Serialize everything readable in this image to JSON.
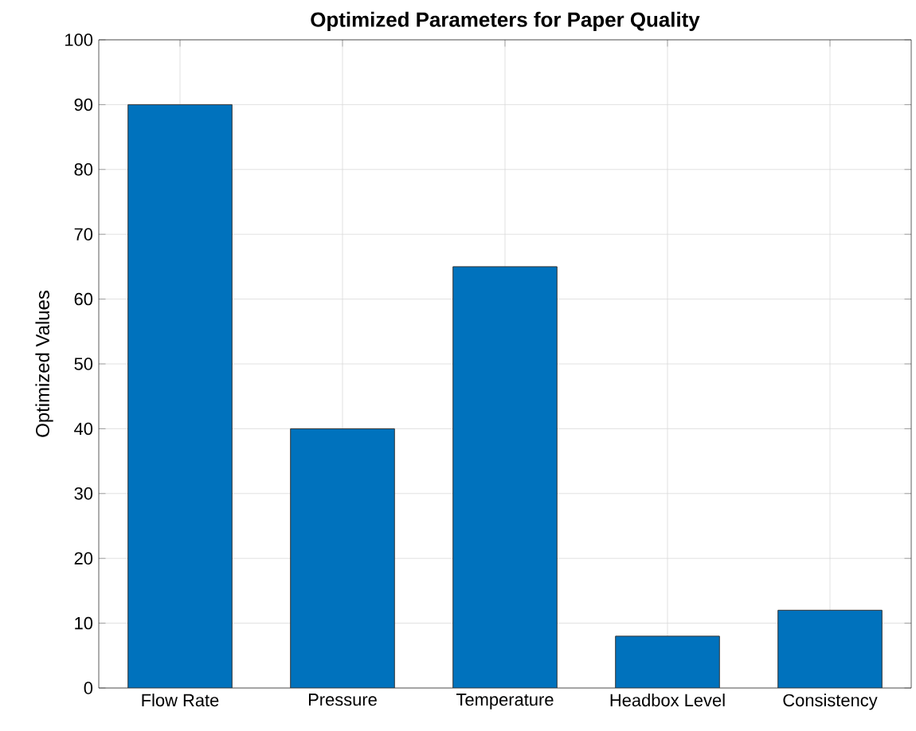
{
  "chart_data": {
    "type": "bar",
    "title": "Optimized Parameters for Paper Quality",
    "ylabel": "Optimized Values",
    "categories": [
      "Flow Rate",
      "Pressure",
      "Temperature",
      "Headbox Level",
      "Consistency"
    ],
    "values": [
      90,
      40,
      65,
      8,
      12
    ],
    "color": "#0072bd",
    "ylim": [
      0,
      100
    ],
    "yticks": [
      0,
      10,
      20,
      30,
      40,
      50,
      60,
      70,
      80,
      90,
      100
    ],
    "grid": true
  }
}
